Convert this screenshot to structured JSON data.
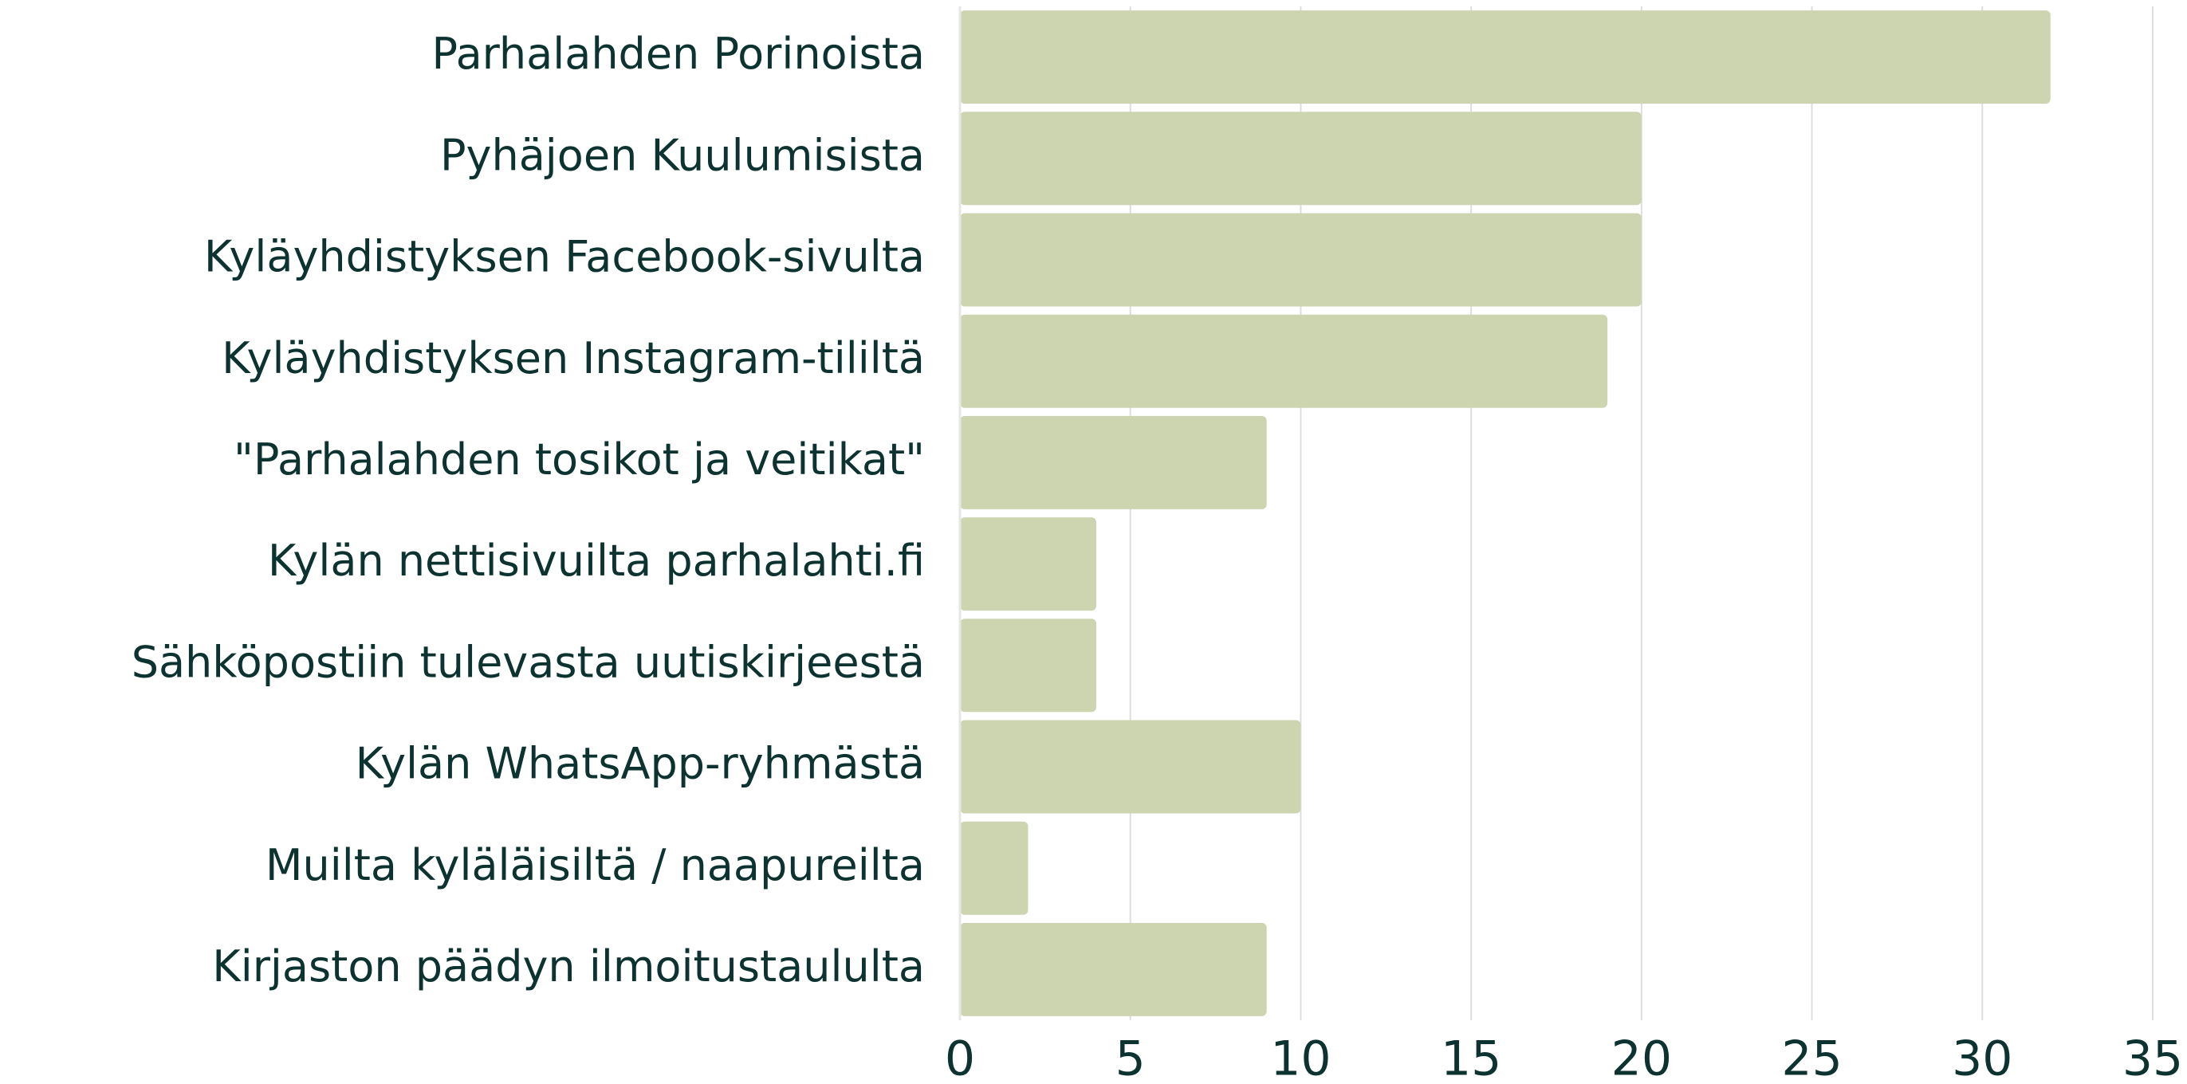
{
  "chart_data": {
    "type": "barh",
    "categories": [
      "Parhalahden Porinoista",
      "Pyhäjoen Kuulumisista",
      "Kyläyhdistyksen Facebook-sivulta",
      "Kyläyhdistyksen Instagram-tililtä",
      "\"Parhalahden tosikot ja veitikat\"",
      "Kylän nettisivuilta parhalahti.fi",
      "Sähköpostiin tulevasta uutiskirjeestä",
      "Kylän WhatsApp-ryhmästä",
      "Muilta kyläläisiltä / naapureilta",
      "Kirjaston päädyn ilmoitustaululta"
    ],
    "values": [
      32,
      20,
      20,
      19,
      9,
      4,
      4,
      10,
      2,
      9
    ],
    "color": "#cdd5b0",
    "xlim": [
      0,
      35
    ],
    "xticks": [
      0,
      5,
      10,
      15,
      20,
      25,
      30,
      35
    ],
    "grid": true
  }
}
